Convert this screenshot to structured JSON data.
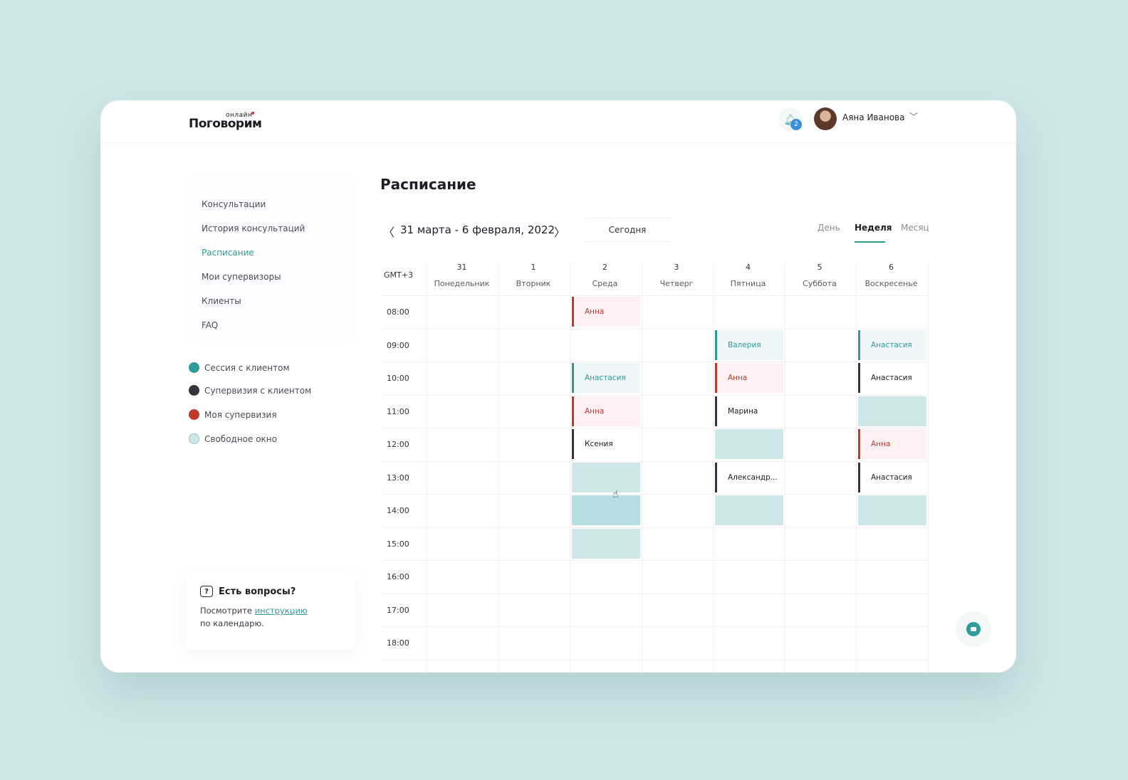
{
  "header": {
    "logo_main": "Поговорим",
    "logo_top": "онлайн",
    "notifications_count": "2",
    "user_name": "Аяна Иванова"
  },
  "sidebar": {
    "items": [
      {
        "label": "Консультации",
        "active": false
      },
      {
        "label": "История консультаций",
        "active": false
      },
      {
        "label": "Расписание",
        "active": true
      },
      {
        "label": "Мои супервизоры",
        "active": false
      },
      {
        "label": "Клиенты",
        "active": false
      },
      {
        "label": "FAQ",
        "active": false
      }
    ]
  },
  "legend": [
    {
      "label": "Сессия с клиентом",
      "color": "#2f9c98"
    },
    {
      "label": "Супервизия с клиентом",
      "color": "#34343c"
    },
    {
      "label": "Моя супервизия",
      "color": "#c0392b"
    },
    {
      "label": "Свободное окно",
      "color": "#cfe6e8"
    }
  ],
  "help": {
    "title": "Есть вопросы?",
    "text_before": "Посмотрите",
    "link": "инструкцию",
    "text_after": "по календарю."
  },
  "main": {
    "title": "Расписание",
    "date_range": "31 марта - 6 февраля, 2022",
    "today_label": "Сегодня",
    "views": {
      "day": "День",
      "week": "Неделя",
      "month": "Месяц"
    },
    "timezone": "GMT+3"
  },
  "calendar": {
    "days": [
      {
        "num": "31",
        "name": "Понедельник"
      },
      {
        "num": "1",
        "name": "Вторник"
      },
      {
        "num": "2",
        "name": "Среда"
      },
      {
        "num": "3",
        "name": "Четверг"
      },
      {
        "num": "4",
        "name": "Пятница"
      },
      {
        "num": "5",
        "name": "Суббота"
      },
      {
        "num": "6",
        "name": "Воскресенье"
      }
    ],
    "times": [
      "08:00",
      "09:00",
      "10:00",
      "11:00",
      "12:00",
      "13:00",
      "14:00",
      "15:00",
      "16:00",
      "17:00",
      "18:00"
    ],
    "events": [
      {
        "day": 2,
        "hour": 0,
        "type": "red",
        "name": "Анна"
      },
      {
        "day": 2,
        "hour": 2,
        "type": "teal",
        "name": "Анастасия"
      },
      {
        "day": 2,
        "hour": 3,
        "type": "red",
        "name": "Анна"
      },
      {
        "day": 2,
        "hour": 4,
        "type": "dark",
        "name": "Ксения"
      },
      {
        "day": 4,
        "hour": 1,
        "type": "teal",
        "name": "Валерия"
      },
      {
        "day": 4,
        "hour": 2,
        "type": "red",
        "name": "Анна"
      },
      {
        "day": 4,
        "hour": 3,
        "type": "dark",
        "name": "Марина"
      },
      {
        "day": 4,
        "hour": 5,
        "type": "dark",
        "name": "Александр..."
      },
      {
        "day": 6,
        "hour": 1,
        "type": "teal",
        "name": "Анастасия"
      },
      {
        "day": 6,
        "hour": 2,
        "type": "dark",
        "name": "Анастасия"
      },
      {
        "day": 6,
        "hour": 4,
        "type": "red",
        "name": "Анна"
      },
      {
        "day": 6,
        "hour": 5,
        "type": "dark",
        "name": "Анастасия"
      }
    ],
    "free_slots": [
      {
        "day": 2,
        "hour": 5
      },
      {
        "day": 2,
        "hour": 6,
        "hover": true
      },
      {
        "day": 2,
        "hour": 7
      },
      {
        "day": 4,
        "hour": 4
      },
      {
        "day": 4,
        "hour": 6
      },
      {
        "day": 6,
        "hour": 3
      },
      {
        "day": 6,
        "hour": 6
      }
    ]
  }
}
